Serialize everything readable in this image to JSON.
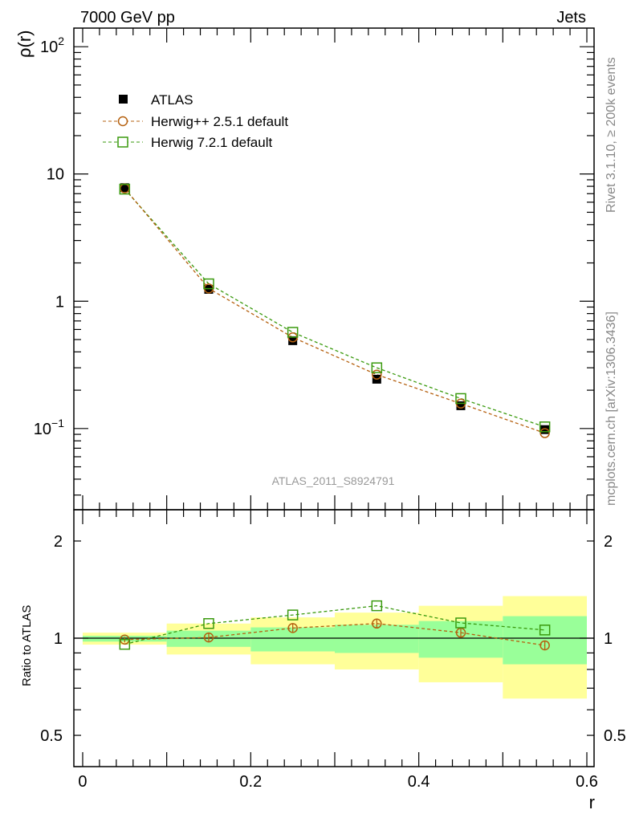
{
  "header": {
    "left": "7000 GeV pp",
    "right": "Jets"
  },
  "side_text": {
    "top": "Rivet 3.1.10, ≥ 200k events",
    "bottom": "mcplots.cern.ch [arXiv:1306.3436]"
  },
  "watermark": "ATLAS_2011_S8924791",
  "colors": {
    "atlas": "#000000",
    "herwigpp": "#b5600f",
    "herwig7": "#3a9a0e",
    "band_outer": "#ffff99",
    "band_inner": "#99ff99"
  },
  "chart_data": [
    {
      "type": "line",
      "panel": "main",
      "ylabel": "ρ(r)",
      "yscale": "log",
      "ylim": [
        0.023,
        140
      ],
      "xlim": [
        -0.0105,
        0.6086
      ],
      "yticks": [
        {
          "value": 100,
          "base": "10",
          "exp": "2"
        },
        {
          "value": 10,
          "base": "10",
          "exp": ""
        },
        {
          "value": 1,
          "base": "1",
          "exp": ""
        },
        {
          "value": 0.1,
          "base": "10",
          "exp": "−1"
        }
      ],
      "x": [
        0.05,
        0.15,
        0.25,
        0.35,
        0.45,
        0.55
      ],
      "legend_position": "top-left",
      "series": [
        {
          "name": "ATLAS",
          "marker": "filled-square",
          "values": [
            7.8,
            1.24,
            0.49,
            0.244,
            0.151,
            0.098
          ]
        },
        {
          "name": "Herwig++ 2.5.1 default",
          "marker": "open-circle",
          "line": "dashed",
          "values": [
            7.7,
            1.26,
            0.52,
            0.265,
            0.157,
            0.092
          ]
        },
        {
          "name": "Herwig 7.2.1 default",
          "marker": "open-square",
          "line": "dashed",
          "values": [
            7.6,
            1.37,
            0.57,
            0.3,
            0.172,
            0.103
          ]
        }
      ]
    },
    {
      "type": "line",
      "panel": "ratio",
      "ylabel": "Ratio to ATLAS",
      "xlabel": "r",
      "yscale": "log",
      "ylim": [
        0.4,
        2.5
      ],
      "xlim": [
        -0.0105,
        0.6086
      ],
      "yticks": [
        {
          "value": 2,
          "label": "2"
        },
        {
          "value": 1,
          "label": "1"
        },
        {
          "value": 0.5,
          "label": "0.5"
        }
      ],
      "xticks": [
        {
          "value": 0,
          "label": "0"
        },
        {
          "value": 0.2,
          "label": "0.2"
        },
        {
          "value": 0.4,
          "label": "0.4"
        },
        {
          "value": 0.6,
          "label": "0.6"
        }
      ],
      "bin_edges": [
        0,
        0.1,
        0.2,
        0.3,
        0.4,
        0.5,
        0.6
      ],
      "band_outer": {
        "lo": [
          0.955,
          0.89,
          0.83,
          0.8,
          0.73,
          0.65
        ],
        "hi": [
          1.04,
          1.11,
          1.16,
          1.2,
          1.26,
          1.35
        ]
      },
      "band_inner": {
        "lo": [
          0.976,
          0.94,
          0.91,
          0.9,
          0.87,
          0.83
        ],
        "hi": [
          1.017,
          1.055,
          1.08,
          1.1,
          1.13,
          1.17
        ]
      },
      "x": [
        0.05,
        0.15,
        0.25,
        0.35,
        0.45,
        0.55
      ],
      "series": [
        {
          "name": "Herwig++ 2.5.1 default",
          "values": [
            0.99,
            1.005,
            1.075,
            1.11,
            1.04,
            0.95
          ],
          "err": [
            0.02,
            0.03,
            0.035,
            0.035,
            0.035,
            0.03
          ]
        },
        {
          "name": "Herwig 7.2.1 default",
          "values": [
            0.957,
            1.11,
            1.18,
            1.26,
            1.115,
            1.06
          ]
        }
      ]
    }
  ]
}
